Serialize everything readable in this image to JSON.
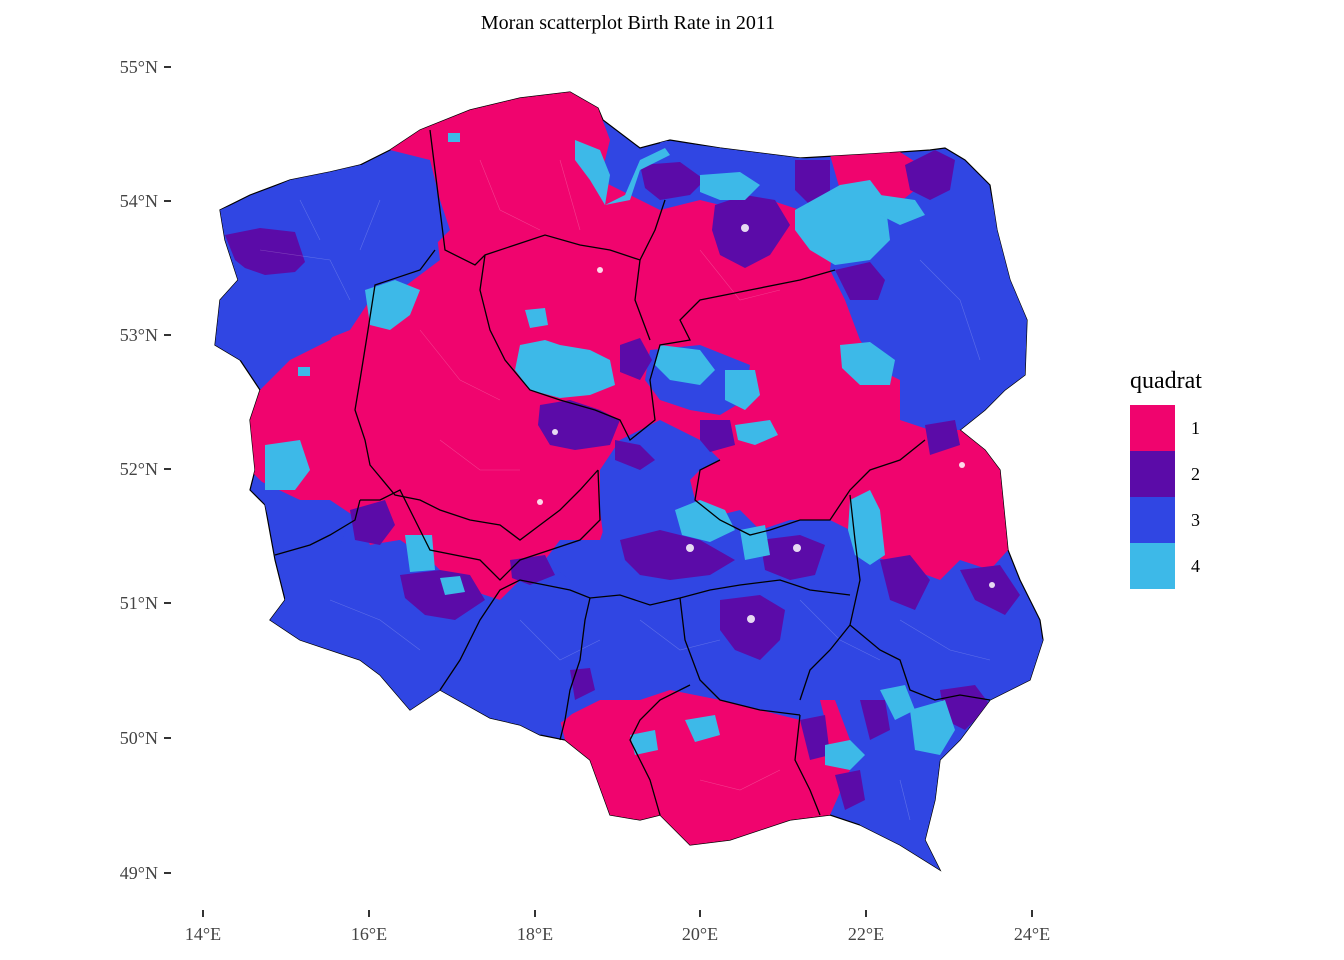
{
  "title": "Moran scatterplot Birth Rate in 2011",
  "axes": {
    "lat_ticks": [
      "55°N",
      "54°N",
      "53°N",
      "52°N",
      "51°N",
      "50°N",
      "49°N"
    ],
    "lon_ticks": [
      "14°E",
      "16°E",
      "18°E",
      "20°E",
      "22°E",
      "24°E"
    ]
  },
  "legend": {
    "title": "quadrat",
    "items": [
      {
        "label": "1",
        "color": "#F0046E"
      },
      {
        "label": "2",
        "color": "#5B0BA8"
      },
      {
        "label": "3",
        "color": "#3046E3"
      },
      {
        "label": "4",
        "color": "#3DB9E8"
      }
    ]
  }
}
